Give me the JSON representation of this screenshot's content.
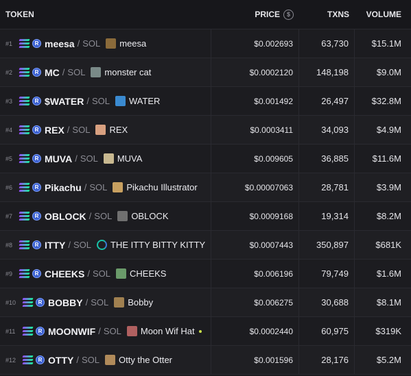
{
  "header": {
    "token": "TOKEN",
    "price": "PRICE",
    "txns": "TXNS",
    "volume": "VOLUME",
    "price_icon": "dollar-circle-icon"
  },
  "rows": [
    {
      "rank": "#1",
      "symbol": "meesa",
      "quote": "SOL",
      "name": "meesa",
      "price": "$0.002693",
      "txns": "63,730",
      "volume": "$15.1M",
      "avatar_color": "#8a6a3a"
    },
    {
      "rank": "#2",
      "symbol": "MC",
      "quote": "SOL",
      "name": "monster cat",
      "price": "$0.0002120",
      "txns": "148,198",
      "volume": "$9.0M",
      "avatar_color": "#7a8a88"
    },
    {
      "rank": "#3",
      "symbol": "$WATER",
      "quote": "SOL",
      "name": "WATER",
      "price": "$0.001492",
      "txns": "26,497",
      "volume": "$32.8M",
      "avatar_color": "#3a8ad0"
    },
    {
      "rank": "#4",
      "symbol": "REX",
      "quote": "SOL",
      "name": "REX",
      "price": "$0.0003411",
      "txns": "34,093",
      "volume": "$4.9M",
      "avatar_color": "#d8a080"
    },
    {
      "rank": "#5",
      "symbol": "MUVA",
      "quote": "SOL",
      "name": "MUVA",
      "price": "$0.009605",
      "txns": "36,885",
      "volume": "$11.6M",
      "avatar_color": "#c8b890"
    },
    {
      "rank": "#6",
      "symbol": "Pikachu",
      "quote": "SOL",
      "name": "Pikachu Illustrator",
      "price": "$0.00007063",
      "txns": "28,781",
      "volume": "$3.9M",
      "avatar_color": "#c8a060"
    },
    {
      "rank": "#7",
      "symbol": "OBLOCK",
      "quote": "SOL",
      "name": "OBLOCK",
      "price": "$0.0009168",
      "txns": "19,314",
      "volume": "$8.2M",
      "avatar_color": "#707070"
    },
    {
      "rank": "#8",
      "symbol": "ITTY",
      "quote": "SOL",
      "name": "THE ITTY BITTY KITTY",
      "price": "$0.0007443",
      "txns": "350,897",
      "volume": "$681K",
      "avatar_color": "ring"
    },
    {
      "rank": "#9",
      "symbol": "CHEEKS",
      "quote": "SOL",
      "name": "CHEEKS",
      "price": "$0.006196",
      "txns": "79,749",
      "volume": "$1.6M",
      "avatar_color": "#6a9a6a"
    },
    {
      "rank": "#10",
      "symbol": "BOBBY",
      "quote": "SOL",
      "name": "Bobby",
      "price": "$0.006275",
      "txns": "30,688",
      "volume": "$8.1M",
      "avatar_color": "#a08050"
    },
    {
      "rank": "#11",
      "symbol": "MOONWIF",
      "quote": "SOL",
      "name": "Moon Wif Hat",
      "price": "$0.0002440",
      "txns": "60,975",
      "volume": "$319K",
      "avatar_color": "#b06060"
    },
    {
      "rank": "#12",
      "symbol": "OTTY",
      "quote": "SOL",
      "name": "Otty the Otter",
      "price": "$0.001596",
      "txns": "28,176",
      "volume": "$5.2M",
      "avatar_color": "#b08a5a"
    }
  ]
}
